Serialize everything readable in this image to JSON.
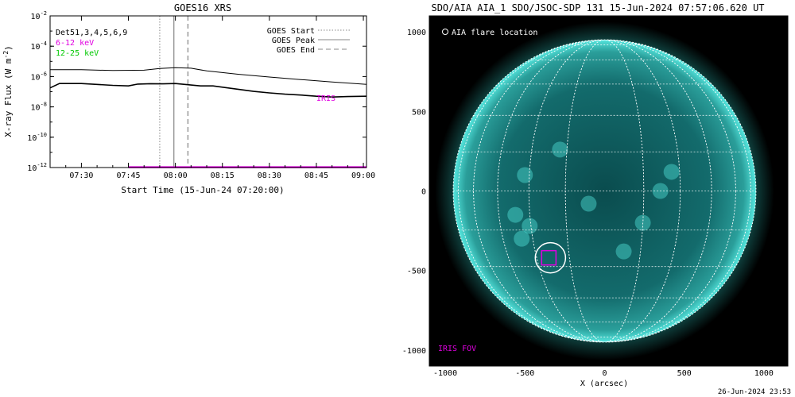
{
  "chart_data": [
    {
      "type": "line",
      "title": "GOES16 XRS",
      "xlabel": "Start Time (15-Jun-24 07:20:00)",
      "ylabel": "X-ray Flux (W m",
      "ylabel_sup": "-2",
      "ylabel_close": ")",
      "y_log": true,
      "ylim_exp": [
        -12,
        -2
      ],
      "y_tick_exponents": [
        -2,
        -4,
        -6,
        -8,
        -10,
        -12
      ],
      "y_tick_base": "10",
      "xlim_min": [
        440,
        541
      ],
      "x_ticks": [
        {
          "min": 450,
          "label": "07:30"
        },
        {
          "min": 465,
          "label": "07:45"
        },
        {
          "min": 480,
          "label": "08:00"
        },
        {
          "min": 495,
          "label": "08:15"
        },
        {
          "min": 510,
          "label": "08:30"
        },
        {
          "min": 525,
          "label": "08:45"
        },
        {
          "min": 540,
          "label": "09:00"
        }
      ],
      "legend_left": [
        {
          "text": "Det51,3,4,5,6,9",
          "color": "#000000"
        },
        {
          "text": "6-12 keV",
          "color": "#e000e0"
        },
        {
          "text": "12-25 keV",
          "color": "#00c800"
        }
      ],
      "legend_right": [
        {
          "text": "GOES Start",
          "style": "dotted"
        },
        {
          "text": "GOES Peak",
          "style": "solid"
        },
        {
          "text": "GOES End",
          "style": "dashed"
        }
      ],
      "event_lines_min": {
        "start": 475,
        "peak": 479.5,
        "end": 484
      },
      "series": [
        {
          "color": "#000000",
          "x": [
            440,
            450,
            460,
            470,
            475,
            480,
            485,
            490,
            500,
            510,
            520,
            530,
            541
          ],
          "y_exp": [
            -5.55,
            -5.55,
            -5.6,
            -5.58,
            -5.47,
            -5.42,
            -5.45,
            -5.63,
            -5.85,
            -6.03,
            -6.2,
            -6.36,
            -6.52
          ]
        },
        {
          "color": "#000000",
          "x": [
            440,
            443,
            450,
            460,
            465,
            468,
            472,
            476,
            480,
            484,
            488,
            492,
            500,
            505,
            510,
            515,
            520,
            525,
            530,
            535,
            541
          ],
          "y_exp": [
            -6.75,
            -6.46,
            -6.46,
            -6.58,
            -6.62,
            -6.5,
            -6.47,
            -6.48,
            -6.46,
            -6.54,
            -6.62,
            -6.62,
            -6.84,
            -6.98,
            -7.08,
            -7.16,
            -7.22,
            -7.3,
            -7.35,
            -7.32,
            -7.3
          ]
        },
        {
          "color": "#e000e0",
          "x": [
            465,
            541
          ],
          "y_exp": [
            -11.98,
            -11.98
          ]
        }
      ],
      "annotation": {
        "text": "IRIS",
        "color": "#e000e0",
        "x_min": 525,
        "y_exp": -7.4
      }
    },
    {
      "type": "scatter",
      "title": "SDO/AIA AIA_1 SDO/JSOC-SDP 131 15-Jun-2024 07:57:06.620 UT",
      "xlabel": "X (arcsec)",
      "xlim": [
        -1100,
        1150
      ],
      "ylim": [
        -1100,
        1100
      ],
      "x_ticks": [
        -1000,
        -500,
        0,
        500,
        1000
      ],
      "y_ticks": [
        1000,
        500,
        0,
        -500,
        -1000
      ],
      "solar_radius_arcsec": 950,
      "flare_location": [
        -340,
        -420
      ],
      "flare_circle_radius_arcsec": 95,
      "iris_fov": {
        "center": [
          -350,
          -420
        ],
        "half_width": 45
      },
      "labels": {
        "flare": "AIA flare location",
        "iris_fov": "IRIS FOV"
      },
      "colors": {
        "disk": "#0f6060",
        "limb_glow": "#2fd0c8",
        "grid": "#ffffff",
        "iris": "#e000e0",
        "background": "#000000"
      }
    }
  ],
  "footer": {
    "timestamp": "26-Jun-2024 23:53"
  }
}
